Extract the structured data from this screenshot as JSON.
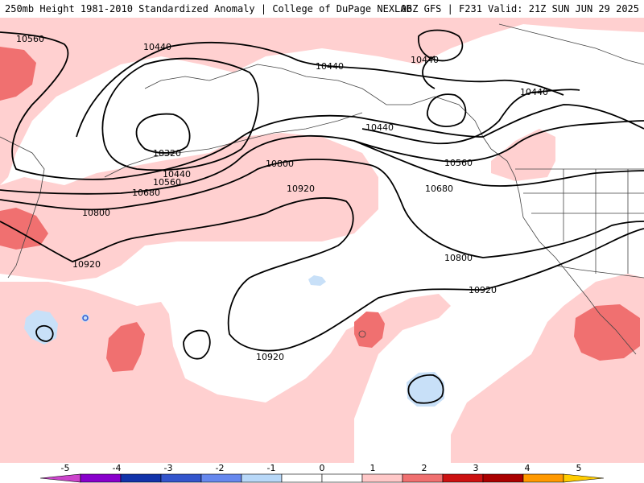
{
  "header": {
    "title_left": "250mb Height 1981-2010 Standardized Anomaly | College of DuPage NEXLAB",
    "title_right": "06Z GFS | F231 Valid: 21Z SUN JUN 29 2025"
  },
  "contour_labels": [
    {
      "text": "10560"
    },
    {
      "text": "10440"
    },
    {
      "text": "10440"
    },
    {
      "text": "10440"
    },
    {
      "text": "10440"
    },
    {
      "text": "10440"
    },
    {
      "text": "10320"
    },
    {
      "text": "10440"
    },
    {
      "text": "10560"
    },
    {
      "text": "10560"
    },
    {
      "text": "10680"
    },
    {
      "text": "10680"
    },
    {
      "text": "10800"
    },
    {
      "text": "10800"
    },
    {
      "text": "10800"
    },
    {
      "text": "10920"
    },
    {
      "text": "10920"
    },
    {
      "text": "10920"
    },
    {
      "text": "10920"
    }
  ],
  "colorbar": {
    "ticks": [
      "-5",
      "-4",
      "-3",
      "-2",
      "-1",
      "0",
      "1",
      "2",
      "3",
      "4",
      "5"
    ],
    "colors": [
      "#cc44cc",
      "#8800cc",
      "#1133aa",
      "#3355cc",
      "#6688ee",
      "#b8d8f8",
      "#ffffff",
      "#ffffff",
      "#ffc8c8",
      "#f07070",
      "#cc1111",
      "#aa0000",
      "#ff9900",
      "#ffcc00"
    ]
  },
  "legend_colors": {
    "pos1": "#ffd0d0",
    "pos2": "#f07070",
    "neg1": "#c8e0f8",
    "land_line": "#444444",
    "contour": "#000000"
  }
}
